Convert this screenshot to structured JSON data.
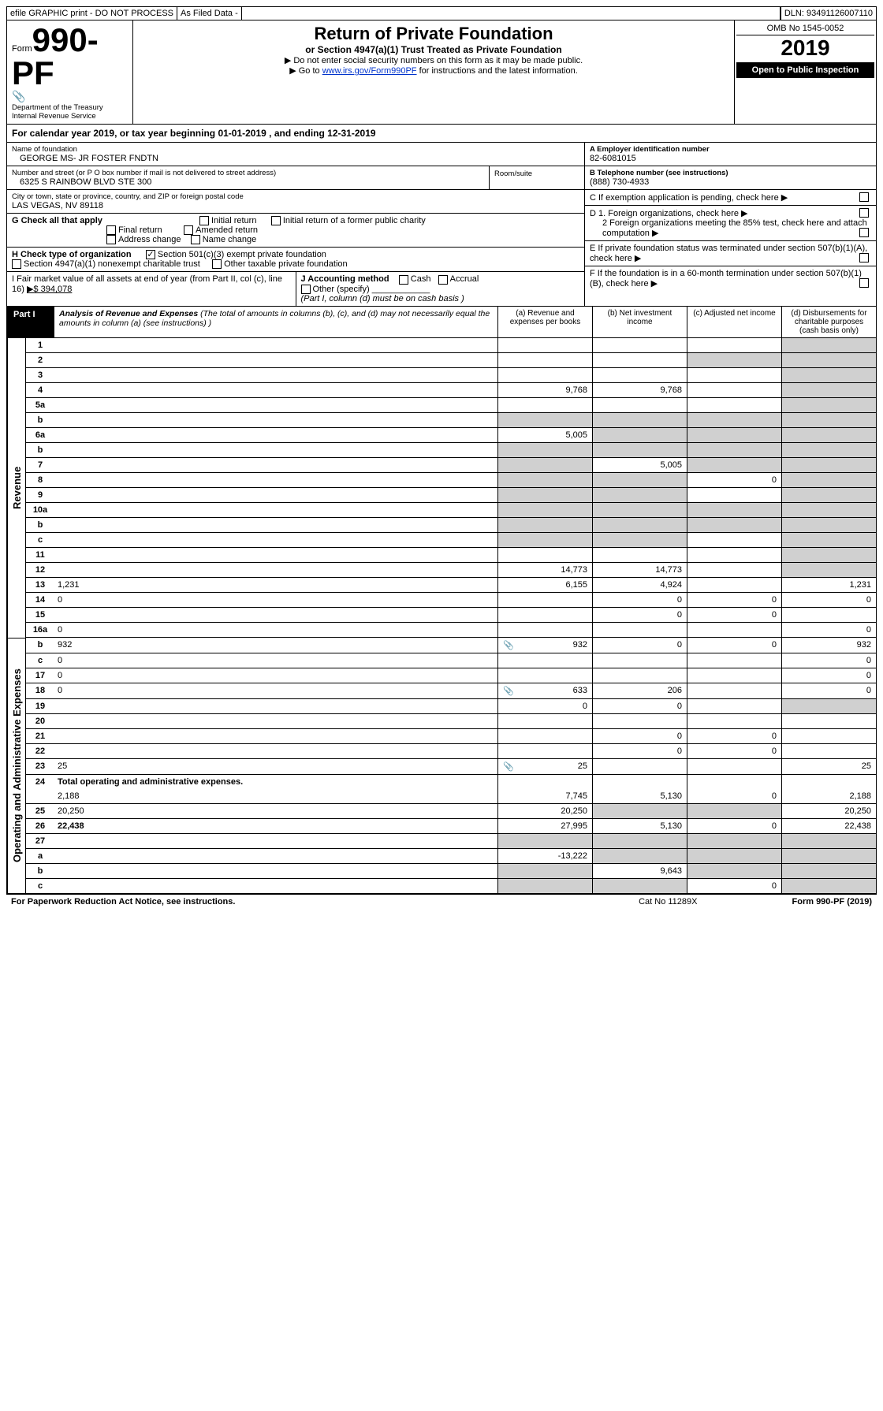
{
  "top": {
    "efile": "efile GRAPHIC print - DO NOT PROCESS",
    "asfiled": "As Filed Data -",
    "dln": "DLN: 93491126007110"
  },
  "header": {
    "form_prefix": "Form",
    "form_no": "990-PF",
    "dept": "Department of the Treasury",
    "irs": "Internal Revenue Service",
    "title": "Return of Private Foundation",
    "subtitle": "or Section 4947(a)(1) Trust Treated as Private Foundation",
    "inst1": "▶ Do not enter social security numbers on this form as it may be made public.",
    "inst2_a": "▶ Go to ",
    "inst2_link": "www.irs.gov/Form990PF",
    "inst2_b": " for instructions and the latest information.",
    "omb": "OMB No 1545-0052",
    "year": "2019",
    "open": "Open to Public Inspection"
  },
  "calyear": "For calendar year 2019, or tax year beginning 01-01-2019            , and ending 12-31-2019",
  "info": {
    "name_lbl": "Name of foundation",
    "name": "GEORGE MS- JR FOSTER FNDTN",
    "addr_lbl": "Number and street (or P O  box number if mail is not delivered to street address)",
    "room_lbl": "Room/suite",
    "addr": "6325 S RAINBOW BLVD STE 300",
    "city_lbl": "City or town, state or province, country, and ZIP or foreign postal code",
    "city": "LAS VEGAS, NV  89118",
    "a_lbl": "A Employer identification number",
    "a_val": "82-6081015",
    "b_lbl": "B Telephone number (see instructions)",
    "b_val": "(888) 730-4933",
    "c_lbl": "C If exemption application is pending, check here",
    "d1": "D 1. Foreign organizations, check here",
    "d2": "2 Foreign organizations meeting the 85% test, check here and attach computation",
    "e": "E   If private foundation status was terminated under section 507(b)(1)(A), check here",
    "f": "F   If the foundation is in a 60-month termination under section 507(b)(1)(B), check here"
  },
  "g": {
    "label": "G Check all that apply",
    "initial": "Initial return",
    "initial_former": "Initial return of a former public charity",
    "final": "Final return",
    "amended": "Amended return",
    "addr_change": "Address change",
    "name_change": "Name change"
  },
  "h": {
    "label": "H Check type of organization",
    "opt1": "Section 501(c)(3) exempt private foundation",
    "opt2": "Section 4947(a)(1) nonexempt charitable trust",
    "opt3": "Other taxable private foundation"
  },
  "i": {
    "label": "I Fair market value of all assets at end of year (from Part II, col  (c), line 16)",
    "val": "▶$  394,078"
  },
  "j": {
    "label": "J Accounting method",
    "cash": "Cash",
    "accrual": "Accrual",
    "other": "Other (specify)",
    "note": "(Part I, column (d) must be on cash basis )"
  },
  "part1": {
    "label": "Part I",
    "title": "Analysis of Revenue and Expenses",
    "desc": " (The total of amounts in columns (b), (c), and (d) may not necessarily equal the amounts in column (a) (see instructions) )",
    "col_a": "(a)   Revenue and expenses per books",
    "col_b": "(b)  Net investment income",
    "col_c": "(c)  Adjusted net income",
    "col_d": "(d)  Disbursements for charitable purposes (cash basis only)"
  },
  "side": {
    "revenue": "Revenue",
    "expenses": "Operating and Administrative Expenses"
  },
  "rows": [
    {
      "n": "1",
      "d": "",
      "a": "",
      "b": "",
      "c": "",
      "ds": true
    },
    {
      "n": "2",
      "d": "",
      "a": "",
      "b": "",
      "c": "",
      "ds": true,
      "cs": true
    },
    {
      "n": "3",
      "d": "",
      "a": "",
      "b": "",
      "c": "",
      "ds": true
    },
    {
      "n": "4",
      "d": "",
      "a": "9,768",
      "b": "9,768",
      "c": "",
      "ds": true
    },
    {
      "n": "5a",
      "d": "",
      "a": "",
      "b": "",
      "c": "",
      "ds": true
    },
    {
      "n": "b",
      "d": "",
      "a": "",
      "b": "",
      "c": "",
      "as": true,
      "bs": true,
      "cs": true,
      "ds": true
    },
    {
      "n": "6a",
      "d": "",
      "a": "5,005",
      "b": "",
      "c": "",
      "bs": true,
      "cs": true,
      "ds": true
    },
    {
      "n": "b",
      "d": "",
      "a": "",
      "b": "",
      "c": "",
      "as": true,
      "bs": true,
      "cs": true,
      "ds": true
    },
    {
      "n": "7",
      "d": "",
      "a": "",
      "b": "5,005",
      "c": "",
      "as": true,
      "cs": true,
      "ds": true
    },
    {
      "n": "8",
      "d": "",
      "a": "",
      "b": "",
      "c": "0",
      "as": true,
      "bs": true,
      "ds": true
    },
    {
      "n": "9",
      "d": "",
      "a": "",
      "b": "",
      "c": "",
      "as": true,
      "bs": true,
      "ds": true
    },
    {
      "n": "10a",
      "d": "",
      "a": "",
      "b": "",
      "c": "",
      "as": true,
      "bs": true,
      "cs": true,
      "ds": true
    },
    {
      "n": "b",
      "d": "",
      "a": "",
      "b": "",
      "c": "",
      "as": true,
      "bs": true,
      "cs": true,
      "ds": true
    },
    {
      "n": "c",
      "d": "",
      "a": "",
      "b": "",
      "c": "",
      "as": true,
      "bs": true,
      "ds": true
    },
    {
      "n": "11",
      "d": "",
      "a": "",
      "b": "",
      "c": "",
      "ds": true
    },
    {
      "n": "12",
      "d": "",
      "bold": true,
      "a": "14,773",
      "b": "14,773",
      "c": "",
      "ds": true
    }
  ],
  "exp_rows": [
    {
      "n": "13",
      "d": "1,231",
      "a": "6,155",
      "b": "4,924",
      "c": ""
    },
    {
      "n": "14",
      "d": "0",
      "a": "",
      "b": "0",
      "c": "0"
    },
    {
      "n": "15",
      "d": "",
      "a": "",
      "b": "0",
      "c": "0"
    },
    {
      "n": "16a",
      "d": "0",
      "a": "",
      "b": "",
      "c": ""
    },
    {
      "n": "b",
      "d": "932",
      "icon": "📎",
      "a": "932",
      "b": "0",
      "c": "0"
    },
    {
      "n": "c",
      "d": "0",
      "a": "",
      "b": "",
      "c": ""
    },
    {
      "n": "17",
      "d": "0",
      "a": "",
      "b": "",
      "c": ""
    },
    {
      "n": "18",
      "d": "0",
      "icon": "📎",
      "a": "633",
      "b": "206",
      "c": ""
    },
    {
      "n": "19",
      "d": "",
      "a": "0",
      "b": "0",
      "c": "",
      "ds": true
    },
    {
      "n": "20",
      "d": "",
      "a": "",
      "b": "",
      "c": ""
    },
    {
      "n": "21",
      "d": "",
      "a": "",
      "b": "0",
      "c": "0"
    },
    {
      "n": "22",
      "d": "",
      "a": "",
      "b": "0",
      "c": "0"
    },
    {
      "n": "23",
      "d": "25",
      "icon": "📎",
      "a": "25",
      "b": "",
      "c": ""
    },
    {
      "n": "24",
      "d": "Total operating and administrative expenses.",
      "bold": true,
      "nobot": true
    },
    {
      "n": "",
      "d": "2,188",
      "a": "7,745",
      "b": "5,130",
      "c": "0"
    },
    {
      "n": "25",
      "d": "20,250",
      "a": "20,250",
      "b": "",
      "c": "",
      "bs": true,
      "cs": true
    },
    {
      "n": "26",
      "d": "22,438",
      "bold": true,
      "a": "27,995",
      "b": "5,130",
      "c": "0"
    }
  ],
  "net_rows": [
    {
      "n": "27",
      "d": "",
      "a": "",
      "b": "",
      "c": "",
      "as": true,
      "bs": true,
      "cs": true,
      "ds": true
    },
    {
      "n": "a",
      "d": "",
      "bold": true,
      "a": "-13,222",
      "b": "",
      "c": "",
      "bs": true,
      "cs": true,
      "ds": true
    },
    {
      "n": "b",
      "d": "",
      "bold": true,
      "a": "",
      "b": "9,643",
      "c": "",
      "as": true,
      "cs": true,
      "ds": true
    },
    {
      "n": "c",
      "d": "",
      "bold": true,
      "a": "",
      "b": "",
      "c": "0",
      "as": true,
      "bs": true,
      "ds": true
    }
  ],
  "footer": {
    "left": "For Paperwork Reduction Act Notice, see instructions.",
    "mid": "Cat  No  11289X",
    "right": "Form 990-PF (2019)"
  }
}
